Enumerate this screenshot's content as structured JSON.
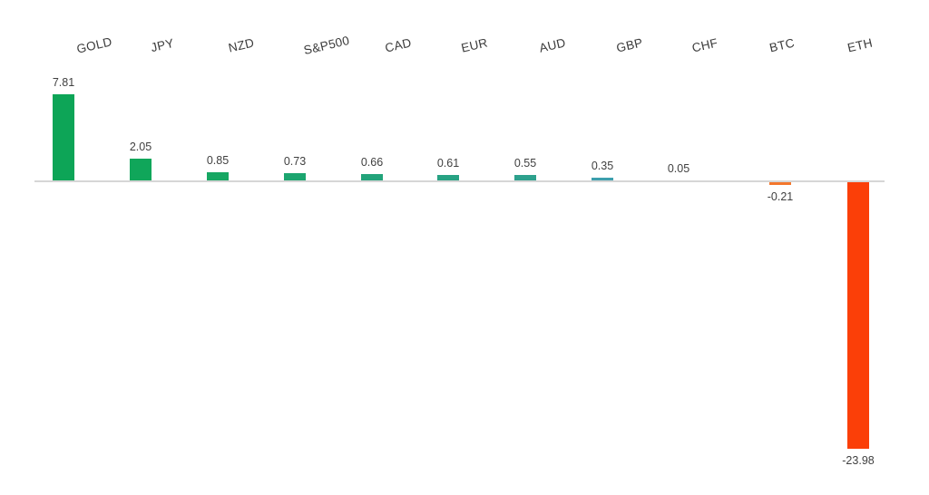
{
  "chart_data": {
    "type": "bar",
    "title": "",
    "xlabel": "",
    "ylabel": "",
    "categories": [
      "GOLD",
      "JPY",
      "NZD",
      "S&P500",
      "CAD",
      "EUR",
      "AUD",
      "GBP",
      "CHF",
      "BTC",
      "ETH"
    ],
    "values": [
      7.81,
      2.05,
      0.85,
      0.73,
      0.66,
      0.61,
      0.55,
      0.35,
      0.05,
      -0.21,
      -23.98
    ],
    "labels": [
      "7.81",
      "2.05",
      "0.85",
      "0.73",
      "0.66",
      "0.61",
      "0.55",
      "0.35",
      "0.05",
      "-0.21",
      "-23.98"
    ],
    "colors": [
      "#0DA557",
      "#10A65A",
      "#17A763",
      "#1CA56F",
      "#22A37A",
      "#27A283",
      "#2DA18D",
      "#3D9FAD",
      "#4D9EC0",
      "#F3772D",
      "#FB3F08"
    ],
    "axis": {
      "baseline": 0,
      "ylim": [
        -24,
        8
      ],
      "line_color": "#D6D6D6",
      "grid": false,
      "legend": false,
      "category_labels_position": "top"
    },
    "category_label_color": "#3A3A3A",
    "value_label_color": "#404040",
    "background": "#FFFFFF"
  }
}
